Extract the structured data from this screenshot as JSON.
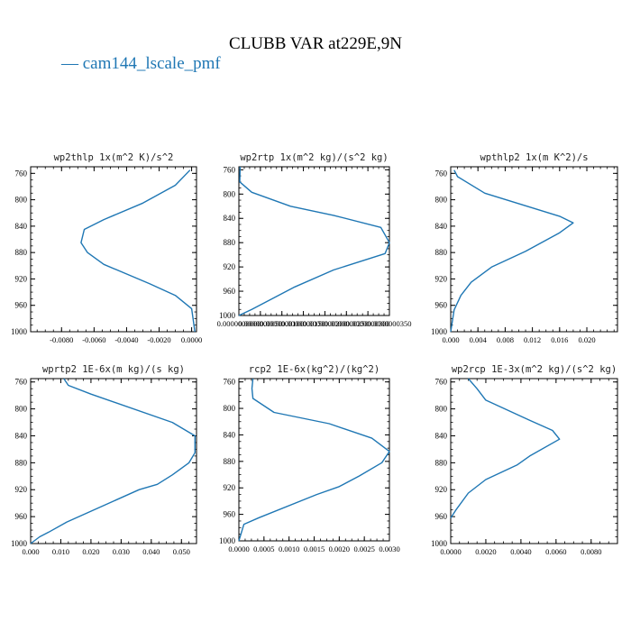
{
  "title": "CLUBB VAR at229E,9N",
  "legend": {
    "label": "cam144_lscale_pmf",
    "color": "#1f77b4"
  },
  "chart_data": [
    {
      "type": "line",
      "title": "wp2thlp   1x(m^2 K)/s^2",
      "x_ticks": [
        "-0.0080",
        "-0.0060",
        "-0.0040",
        "-0.0020",
        "0.0000"
      ],
      "y_ticks": [
        "760",
        "800",
        "840",
        "880",
        "920",
        "960",
        "1000"
      ],
      "xlim": [
        -0.0099,
        0.0003
      ],
      "ylim": [
        1000,
        750
      ],
      "series": [
        {
          "color": "#1f77b4",
          "x": [
            -0.0001,
            -0.001,
            -0.003,
            -0.0054,
            -0.0066,
            -0.0068,
            -0.0064,
            -0.0054,
            -0.0026,
            -0.001,
            0.0,
            0.0002
          ],
          "y": [
            755,
            778,
            805,
            830,
            845,
            865,
            880,
            898,
            927,
            945,
            965,
            1000
          ]
        }
      ]
    },
    {
      "type": "line",
      "title": "wp2rtp   1x(m^2 kg)/(s^2 kg)",
      "x_ticks": [
        "0.0000000000",
        "0.0000000050",
        "0.0000000100",
        "0.0000000150",
        "0.0000000200",
        "0.0000000250",
        "0.0000000300",
        "0.0000000350"
      ],
      "y_ticks": [
        "760",
        "800",
        "840",
        "880",
        "920",
        "960",
        "1000"
      ],
      "xlim": [
        0,
        3.5e-08
      ],
      "ylim": [
        1000,
        755
      ],
      "series": [
        {
          "color": "#1f77b4",
          "x": [
            3e-10,
            2e-10,
            3e-09,
            1.2e-08,
            2.2e-08,
            3.3e-08,
            3.5e-08,
            3.4e-08,
            2.2e-08,
            1.3e-08,
            7e-09,
            3e-09,
            0.0
          ],
          "y": [
            755,
            780,
            797,
            820,
            835,
            855,
            880,
            898,
            925,
            953,
            975,
            990,
            1000
          ]
        }
      ]
    },
    {
      "type": "line",
      "title": "wpthlp2   1x(m K^2)/s",
      "x_ticks": [
        "0.000",
        "0.004",
        "0.008",
        "0.012",
        "0.016",
        "0.020"
      ],
      "y_ticks": [
        "760",
        "800",
        "840",
        "880",
        "920",
        "960",
        "1000"
      ],
      "xlim": [
        0,
        0.0245
      ],
      "ylim": [
        1000,
        750
      ],
      "series": [
        {
          "color": "#1f77b4",
          "x": [
            0.0005,
            0.001,
            0.005,
            0.016,
            0.018,
            0.016,
            0.011,
            0.006,
            0.003,
            0.0015,
            0.0005,
            0.0
          ],
          "y": [
            755,
            765,
            790,
            825,
            835,
            850,
            878,
            902,
            925,
            945,
            967,
            1000
          ]
        }
      ]
    },
    {
      "type": "line",
      "title": "wprtp2   1E-6x(m kg)/(s kg)",
      "x_ticks": [
        "0.000",
        "0.010",
        "0.020",
        "0.030",
        "0.040",
        "0.050"
      ],
      "y_ticks": [
        "760",
        "800",
        "840",
        "880",
        "920",
        "960",
        "1000"
      ],
      "xlim": [
        0,
        0.055
      ],
      "ylim": [
        1000,
        755
      ],
      "series": [
        {
          "color": "#1f77b4",
          "x": [
            0.011,
            0.0125,
            0.02,
            0.047,
            0.0545,
            0.0545,
            0.0525,
            0.047,
            0.042,
            0.036,
            0.012,
            0.006,
            0.003,
            0.0
          ],
          "y": [
            755,
            765,
            778,
            820,
            840,
            865,
            880,
            898,
            912,
            920,
            968,
            983,
            990,
            1000
          ]
        }
      ]
    },
    {
      "type": "line",
      "title": "rcp2   1E-6x(kg^2)/(kg^2)",
      "x_ticks": [
        "0.0000",
        "0.0005",
        "0.0010",
        "0.0015",
        "0.0020",
        "0.0025",
        "0.0030"
      ],
      "y_ticks": [
        "760",
        "800",
        "840",
        "880",
        "920",
        "960",
        "1000"
      ],
      "xlim": [
        0,
        0.003
      ],
      "ylim": [
        1000,
        755
      ],
      "series": [
        {
          "color": "#1f77b4",
          "x": [
            0.00028,
            0.00026,
            0.00028,
            0.0007,
            0.0018,
            0.00265,
            0.003,
            0.00285,
            0.0024,
            0.002,
            0.00155,
            0.0004,
            0.0001,
            0.0
          ],
          "y": [
            755,
            770,
            785,
            806,
            823,
            845,
            865,
            882,
            902,
            918,
            930,
            965,
            975,
            1000
          ]
        }
      ]
    },
    {
      "type": "line",
      "title": "wp2rcp   1E-3x(m^2 kg)/(s^2 kg)",
      "x_ticks": [
        "0.0000",
        "0.0020",
        "0.0040",
        "0.0060",
        "0.0080"
      ],
      "y_ticks": [
        "760",
        "800",
        "840",
        "880",
        "920",
        "960",
        "1000"
      ],
      "xlim": [
        0,
        0.0095
      ],
      "ylim": [
        1000,
        755
      ],
      "series": [
        {
          "color": "#1f77b4",
          "x": [
            0.001,
            0.0015,
            0.002,
            0.0045,
            0.0058,
            0.0062,
            0.0045,
            0.0038,
            0.002,
            0.001,
            0.0003,
            0.0
          ],
          "y": [
            755,
            770,
            787,
            817,
            832,
            845,
            870,
            883,
            905,
            925,
            950,
            962
          ]
        }
      ]
    }
  ]
}
